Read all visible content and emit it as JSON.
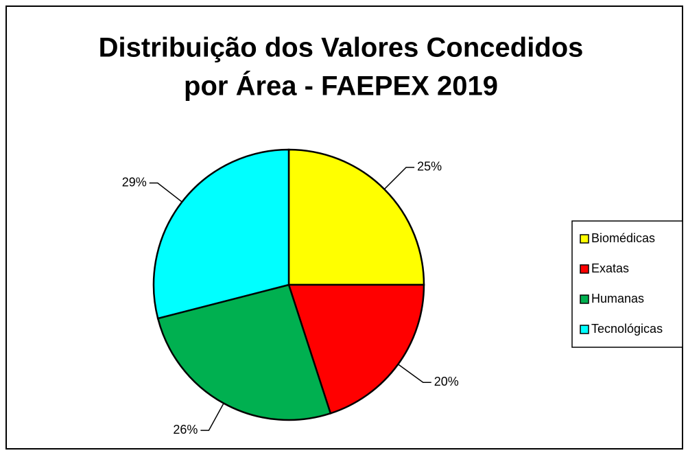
{
  "chart_data": {
    "type": "pie",
    "title": [
      "Distribuição dos Valores Concedidos",
      "por Área - FAEPEX 2019"
    ],
    "categories": [
      "Biomédicas",
      "Exatas",
      "Humanas",
      "Tecnológicas"
    ],
    "values": [
      25,
      20,
      26,
      29
    ],
    "value_labels": [
      "25%",
      "20%",
      "26%",
      "29%"
    ],
    "colors": [
      "#ffff00",
      "#ff0000",
      "#00b050",
      "#00ffff"
    ],
    "legend": "right"
  }
}
